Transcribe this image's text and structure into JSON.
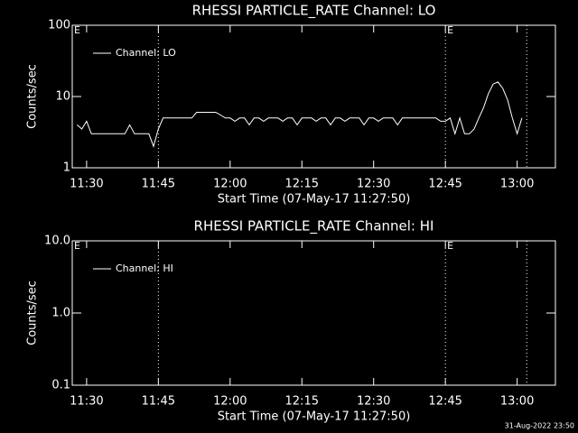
{
  "chart_data": [
    {
      "type": "line",
      "title": "RHESSI PARTICLE_RATE Channel: LO",
      "xlabel": "Start Time (07-May-17 11:27:50)",
      "ylabel": "Counts/sec",
      "log_y": true,
      "xlim": [
        "11:27",
        "13:08"
      ],
      "xticks": [
        "11:30",
        "11:45",
        "12:00",
        "12:15",
        "12:30",
        "12:45",
        "13:00"
      ],
      "ylim": [
        1,
        100
      ],
      "yticks": [
        1,
        10,
        100
      ],
      "legend": "upper left",
      "vlines": [
        "11:45",
        "12:45",
        "13:02"
      ],
      "annotations": [
        {
          "x": "11:27",
          "label": "E"
        },
        {
          "x": "12:45",
          "label": "E"
        }
      ],
      "x": [
        "11:28",
        "11:29",
        "11:30",
        "11:31",
        "11:32",
        "11:33",
        "11:34",
        "11:35",
        "11:36",
        "11:37",
        "11:38",
        "11:39",
        "11:40",
        "11:41",
        "11:42",
        "11:43",
        "11:44",
        "11:45",
        "11:46",
        "11:47",
        "11:48",
        "11:49",
        "11:50",
        "11:51",
        "11:52",
        "11:53",
        "11:54",
        "11:55",
        "11:56",
        "11:57",
        "11:58",
        "11:59",
        "12:00",
        "12:01",
        "12:02",
        "12:03",
        "12:04",
        "12:05",
        "12:06",
        "12:07",
        "12:08",
        "12:09",
        "12:10",
        "12:11",
        "12:12",
        "12:13",
        "12:14",
        "12:15",
        "12:16",
        "12:17",
        "12:18",
        "12:19",
        "12:20",
        "12:21",
        "12:22",
        "12:23",
        "12:24",
        "12:25",
        "12:26",
        "12:27",
        "12:28",
        "12:29",
        "12:30",
        "12:31",
        "12:32",
        "12:33",
        "12:34",
        "12:35",
        "12:36",
        "12:37",
        "12:38",
        "12:39",
        "12:40",
        "12:41",
        "12:42",
        "12:43",
        "12:44",
        "12:45",
        "12:46",
        "12:47",
        "12:48",
        "12:49",
        "12:50",
        "12:51",
        "12:52",
        "12:53",
        "12:54",
        "12:55",
        "12:56",
        "12:57",
        "12:58",
        "12:59",
        "13:00",
        "13:01"
      ],
      "series": [
        {
          "name": "Channel: LO",
          "color": "#ffffff",
          "values": [
            4,
            3.5,
            4.5,
            3,
            3,
            3,
            3,
            3,
            3,
            3,
            3,
            4,
            3,
            3,
            3,
            3,
            2,
            3.5,
            5,
            5,
            5,
            5,
            5,
            5,
            5,
            6,
            6,
            6,
            6,
            6,
            5.5,
            5,
            5,
            4.5,
            5,
            5,
            4,
            5,
            5,
            4.5,
            5,
            5,
            5,
            4.5,
            5,
            5,
            4,
            5,
            5,
            5,
            4.5,
            5,
            5,
            4,
            5,
            5,
            4.5,
            5,
            5,
            5,
            4,
            5,
            5,
            4.5,
            5,
            5,
            5,
            4,
            5,
            5,
            5,
            5,
            5,
            5,
            5,
            5,
            4.5,
            4.5,
            5,
            3,
            5,
            3,
            3,
            3.5,
            5,
            7,
            11,
            15,
            16,
            13,
            9,
            5,
            3,
            5
          ]
        }
      ]
    },
    {
      "type": "line",
      "title": "RHESSI PARTICLE_RATE Channel: HI",
      "xlabel": "Start Time (07-May-17 11:27:50)",
      "ylabel": "Counts/sec",
      "log_y": true,
      "xlim": [
        "11:27",
        "13:08"
      ],
      "xticks": [
        "11:30",
        "11:45",
        "12:00",
        "12:15",
        "12:30",
        "12:45",
        "13:00"
      ],
      "ylim": [
        0.1,
        10
      ],
      "yticks": [
        0.1,
        {
          "value": 1,
          "label": "1.0"
        },
        {
          "value": 10,
          "label": "10.0"
        }
      ],
      "legend": "upper left",
      "vlines": [
        "11:45",
        "12:45",
        "13:02"
      ],
      "annotations": [
        {
          "x": "11:27",
          "label": "E"
        },
        {
          "x": "12:45",
          "label": "E"
        }
      ],
      "x": [],
      "series": [
        {
          "name": "Channel: HI",
          "color": "#ffffff",
          "values": []
        }
      ]
    }
  ],
  "footer": "31-Aug-2022 23:50"
}
